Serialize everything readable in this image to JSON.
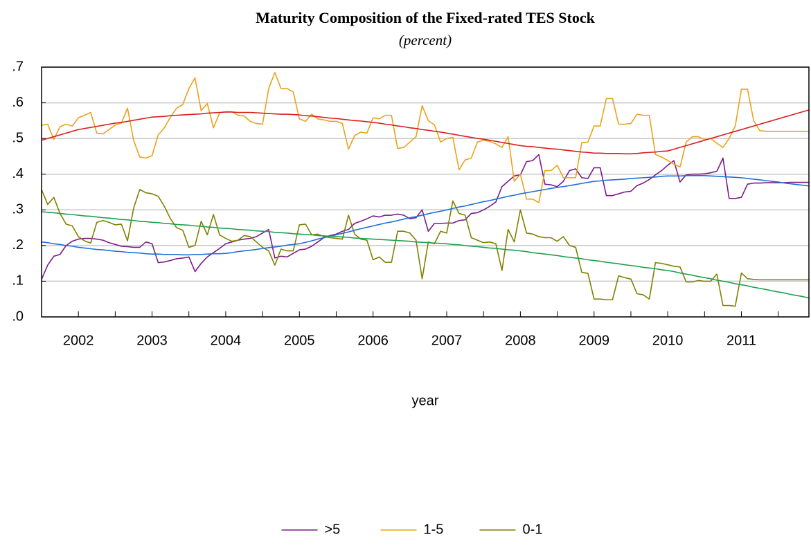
{
  "chart_data": {
    "type": "line",
    "title": "Maturity Composition of the Fixed-rated TES Stock",
    "subtitle": "(percent)",
    "x_label": "year",
    "categories": [
      null,
      null,
      null,
      null,
      null,
      null,
      "2002",
      null,
      null,
      null,
      null,
      null,
      null,
      null,
      null,
      null,
      null,
      null,
      "2003",
      null,
      null,
      null,
      null,
      null,
      null,
      null,
      null,
      null,
      null,
      null,
      "2004",
      null,
      null,
      null,
      null,
      null,
      null,
      null,
      null,
      null,
      null,
      null,
      "2005",
      null,
      null,
      null,
      null,
      null,
      null,
      null,
      null,
      null,
      null,
      null,
      "2006",
      null,
      null,
      null,
      null,
      null,
      null,
      null,
      null,
      null,
      null,
      null,
      "2007",
      null,
      null,
      null,
      null,
      null,
      null,
      null,
      null,
      null,
      null,
      null,
      "2008",
      null,
      null,
      null,
      null,
      null,
      null,
      null,
      null,
      null,
      null,
      null,
      "2009",
      null,
      null,
      null,
      null,
      null,
      null,
      null,
      null,
      null,
      null,
      null,
      "2010",
      null,
      null,
      null,
      null,
      null,
      null,
      null,
      null,
      null,
      null,
      null,
      "2011",
      null,
      null,
      null,
      null,
      null,
      null,
      null,
      null,
      null,
      null,
      null
    ],
    "ylim": [
      0,
      0.7
    ],
    "yticks": [
      {
        "value": 0,
        "label": ".0"
      },
      {
        "value": 0.1,
        "label": ".1"
      },
      {
        "value": 0.2,
        "label": ".2"
      },
      {
        "value": 0.3,
        "label": ".3"
      },
      {
        "value": 0.4,
        "label": ".4"
      },
      {
        "value": 0.5,
        "label": ".5"
      },
      {
        "value": 0.6,
        "label": ".6"
      },
      {
        "value": 0.7,
        "label": ".7"
      }
    ],
    "grid": true,
    "legend": "bottom",
    "series": [
      {
        "name": ">5",
        "color": "#7b1a8a",
        "values": [
          0.105,
          0.145,
          0.17,
          0.175,
          0.2,
          0.212,
          0.218,
          0.22,
          0.22,
          0.218,
          0.215,
          0.208,
          0.203,
          0.198,
          0.197,
          0.195,
          0.195,
          0.21,
          0.205,
          0.152,
          0.154,
          0.158,
          0.163,
          0.165,
          0.168,
          0.127,
          0.15,
          0.168,
          0.18,
          0.192,
          0.205,
          0.21,
          0.215,
          0.218,
          0.22,
          0.225,
          0.235,
          0.245,
          0.165,
          0.17,
          0.168,
          0.178,
          0.188,
          0.19,
          0.198,
          0.21,
          0.222,
          0.228,
          0.232,
          0.24,
          0.245,
          0.262,
          0.268,
          0.275,
          0.283,
          0.28,
          0.285,
          0.285,
          0.288,
          0.285,
          0.275,
          0.278,
          0.3,
          0.24,
          0.262,
          0.262,
          0.263,
          0.263,
          0.27,
          0.272,
          0.29,
          0.292,
          0.3,
          0.31,
          0.322,
          0.365,
          0.38,
          0.395,
          0.398,
          0.435,
          0.438,
          0.455,
          0.372,
          0.37,
          0.365,
          0.38,
          0.41,
          0.415,
          0.39,
          0.388,
          0.418,
          0.418,
          0.34,
          0.34,
          0.345,
          0.35,
          0.352,
          0.368,
          0.375,
          0.385,
          0.398,
          0.41,
          0.425,
          0.438,
          0.378,
          0.398,
          0.4,
          0.4,
          0.401,
          0.404,
          0.408,
          0.445,
          0.332,
          0.332,
          0.335,
          0.372,
          0.375,
          0.375,
          0.376,
          0.376,
          0.376,
          0.376,
          0.377,
          0.377,
          0.377,
          0.377
        ]
      },
      {
        "name": "1-5",
        "color": "#eba21c",
        "values": [
          0.537,
          0.54,
          0.497,
          0.533,
          0.54,
          0.535,
          0.558,
          0.565,
          0.573,
          0.515,
          0.513,
          0.525,
          0.538,
          0.543,
          0.585,
          0.495,
          0.448,
          0.445,
          0.452,
          0.51,
          0.53,
          0.56,
          0.585,
          0.595,
          0.64,
          0.67,
          0.578,
          0.598,
          0.53,
          0.572,
          0.575,
          0.575,
          0.565,
          0.563,
          0.548,
          0.542,
          0.54,
          0.64,
          0.685,
          0.64,
          0.64,
          0.63,
          0.555,
          0.548,
          0.568,
          0.555,
          0.552,
          0.548,
          0.548,
          0.542,
          0.47,
          0.508,
          0.518,
          0.515,
          0.558,
          0.555,
          0.565,
          0.565,
          0.472,
          0.475,
          0.49,
          0.505,
          0.592,
          0.55,
          0.538,
          0.49,
          0.5,
          0.503,
          0.412,
          0.44,
          0.445,
          0.49,
          0.495,
          0.492,
          0.485,
          0.475,
          0.505,
          0.38,
          0.4,
          0.33,
          0.33,
          0.32,
          0.41,
          0.41,
          0.425,
          0.39,
          0.39,
          0.39,
          0.488,
          0.49,
          0.535,
          0.535,
          0.612,
          0.612,
          0.54,
          0.54,
          0.542,
          0.568,
          0.565,
          0.565,
          0.455,
          0.448,
          0.438,
          0.428,
          0.42,
          0.49,
          0.505,
          0.505,
          0.497,
          0.5,
          0.487,
          0.475,
          0.5,
          0.535,
          0.638,
          0.638,
          0.55,
          0.522,
          0.52,
          0.52,
          0.52,
          0.52,
          0.52,
          0.52,
          0.52,
          0.52
        ]
      },
      {
        "name": "0-1",
        "color": "#808000",
        "values": [
          0.357,
          0.315,
          0.335,
          0.29,
          0.26,
          0.255,
          0.225,
          0.213,
          0.207,
          0.265,
          0.27,
          0.265,
          0.258,
          0.26,
          0.213,
          0.305,
          0.357,
          0.348,
          0.345,
          0.338,
          0.31,
          0.275,
          0.25,
          0.243,
          0.195,
          0.2,
          0.268,
          0.23,
          0.287,
          0.23,
          0.22,
          0.212,
          0.215,
          0.228,
          0.225,
          0.21,
          0.195,
          0.185,
          0.145,
          0.19,
          0.185,
          0.185,
          0.258,
          0.26,
          0.23,
          0.232,
          0.225,
          0.222,
          0.22,
          0.218,
          0.285,
          0.232,
          0.218,
          0.215,
          0.16,
          0.168,
          0.153,
          0.153,
          0.24,
          0.24,
          0.235,
          0.215,
          0.107,
          0.21,
          0.205,
          0.24,
          0.235,
          0.325,
          0.29,
          0.285,
          0.222,
          0.215,
          0.208,
          0.21,
          0.205,
          0.13,
          0.245,
          0.21,
          0.3,
          0.235,
          0.232,
          0.225,
          0.222,
          0.222,
          0.212,
          0.225,
          0.2,
          0.195,
          0.125,
          0.122,
          0.05,
          0.05,
          0.048,
          0.048,
          0.115,
          0.11,
          0.106,
          0.065,
          0.062,
          0.05,
          0.152,
          0.15,
          0.146,
          0.142,
          0.14,
          0.098,
          0.098,
          0.102,
          0.1,
          0.1,
          0.12,
          0.032,
          0.032,
          0.03,
          0.123,
          0.107,
          0.105,
          0.104,
          0.104,
          0.104,
          0.104,
          0.104,
          0.104,
          0.104,
          0.104,
          0.104
        ]
      },
      {
        "color": "#d81e1e",
        "values": [
          0.495,
          0.5,
          0.505,
          0.51,
          0.515,
          0.52,
          0.525,
          0.528,
          0.531,
          0.534,
          0.537,
          0.54,
          0.543,
          0.545,
          0.548,
          0.551,
          0.554,
          0.557,
          0.56,
          0.561,
          0.562,
          0.564,
          0.565,
          0.566,
          0.567,
          0.568,
          0.569,
          0.571,
          0.572,
          0.573,
          0.574,
          0.574,
          0.573,
          0.573,
          0.573,
          0.572,
          0.571,
          0.57,
          0.569,
          0.568,
          0.568,
          0.567,
          0.566,
          0.564,
          0.563,
          0.561,
          0.559,
          0.557,
          0.556,
          0.554,
          0.552,
          0.55,
          0.549,
          0.547,
          0.545,
          0.543,
          0.54,
          0.538,
          0.535,
          0.533,
          0.53,
          0.528,
          0.525,
          0.523,
          0.52,
          0.518,
          0.515,
          0.512,
          0.509,
          0.506,
          0.503,
          0.5,
          0.498,
          0.495,
          0.492,
          0.489,
          0.486,
          0.483,
          0.48,
          0.478,
          0.477,
          0.475,
          0.473,
          0.471,
          0.47,
          0.468,
          0.466,
          0.464,
          0.462,
          0.461,
          0.459,
          0.459,
          0.458,
          0.458,
          0.458,
          0.457,
          0.457,
          0.458,
          0.46,
          0.461,
          0.462,
          0.464,
          0.465,
          0.47,
          0.475,
          0.48,
          0.485,
          0.49,
          0.495,
          0.5,
          0.505,
          0.51,
          0.515,
          0.52,
          0.525,
          0.53,
          0.535,
          0.54,
          0.545,
          0.55,
          0.555,
          0.56,
          0.565,
          0.57,
          0.575,
          0.58
        ]
      },
      {
        "color": "#1f6fd8",
        "values": [
          0.21,
          0.208,
          0.205,
          0.203,
          0.2,
          0.198,
          0.195,
          0.193,
          0.191,
          0.189,
          0.188,
          0.186,
          0.184,
          0.183,
          0.181,
          0.18,
          0.179,
          0.177,
          0.176,
          0.176,
          0.175,
          0.175,
          0.175,
          0.174,
          0.174,
          0.175,
          0.175,
          0.176,
          0.177,
          0.177,
          0.178,
          0.18,
          0.183,
          0.185,
          0.187,
          0.189,
          0.192,
          0.194,
          0.196,
          0.198,
          0.201,
          0.203,
          0.205,
          0.209,
          0.213,
          0.218,
          0.222,
          0.226,
          0.23,
          0.234,
          0.238,
          0.243,
          0.247,
          0.251,
          0.255,
          0.259,
          0.263,
          0.266,
          0.27,
          0.274,
          0.278,
          0.281,
          0.285,
          0.289,
          0.293,
          0.296,
          0.3,
          0.304,
          0.308,
          0.311,
          0.315,
          0.319,
          0.323,
          0.326,
          0.33,
          0.334,
          0.338,
          0.341,
          0.345,
          0.348,
          0.351,
          0.354,
          0.357,
          0.36,
          0.363,
          0.365,
          0.368,
          0.371,
          0.374,
          0.377,
          0.38,
          0.381,
          0.383,
          0.384,
          0.385,
          0.386,
          0.388,
          0.389,
          0.39,
          0.391,
          0.392,
          0.394,
          0.395,
          0.395,
          0.395,
          0.396,
          0.396,
          0.396,
          0.396,
          0.395,
          0.394,
          0.393,
          0.392,
          0.391,
          0.39,
          0.388,
          0.386,
          0.384,
          0.382,
          0.38,
          0.378,
          0.375,
          0.373,
          0.371,
          0.369,
          0.367
        ]
      },
      {
        "color": "#1ea04c",
        "values": [
          0.295,
          0.293,
          0.292,
          0.29,
          0.288,
          0.287,
          0.285,
          0.283,
          0.282,
          0.28,
          0.278,
          0.277,
          0.275,
          0.273,
          0.272,
          0.27,
          0.268,
          0.267,
          0.265,
          0.264,
          0.262,
          0.261,
          0.259,
          0.258,
          0.257,
          0.255,
          0.254,
          0.252,
          0.251,
          0.249,
          0.248,
          0.247,
          0.245,
          0.244,
          0.243,
          0.241,
          0.24,
          0.239,
          0.237,
          0.236,
          0.235,
          0.233,
          0.232,
          0.231,
          0.23,
          0.228,
          0.227,
          0.226,
          0.225,
          0.224,
          0.223,
          0.221,
          0.22,
          0.219,
          0.218,
          0.217,
          0.216,
          0.215,
          0.214,
          0.213,
          0.212,
          0.21,
          0.209,
          0.208,
          0.207,
          0.206,
          0.205,
          0.203,
          0.202,
          0.2,
          0.198,
          0.197,
          0.195,
          0.193,
          0.192,
          0.19,
          0.188,
          0.187,
          0.185,
          0.183,
          0.18,
          0.178,
          0.176,
          0.174,
          0.172,
          0.169,
          0.167,
          0.165,
          0.163,
          0.16,
          0.158,
          0.156,
          0.153,
          0.151,
          0.149,
          0.146,
          0.144,
          0.142,
          0.139,
          0.137,
          0.135,
          0.132,
          0.13,
          0.127,
          0.123,
          0.12,
          0.117,
          0.113,
          0.11,
          0.107,
          0.103,
          0.1,
          0.097,
          0.093,
          0.09,
          0.087,
          0.083,
          0.08,
          0.077,
          0.073,
          0.07,
          0.067,
          0.063,
          0.06,
          0.057,
          0.053
        ]
      }
    ]
  }
}
